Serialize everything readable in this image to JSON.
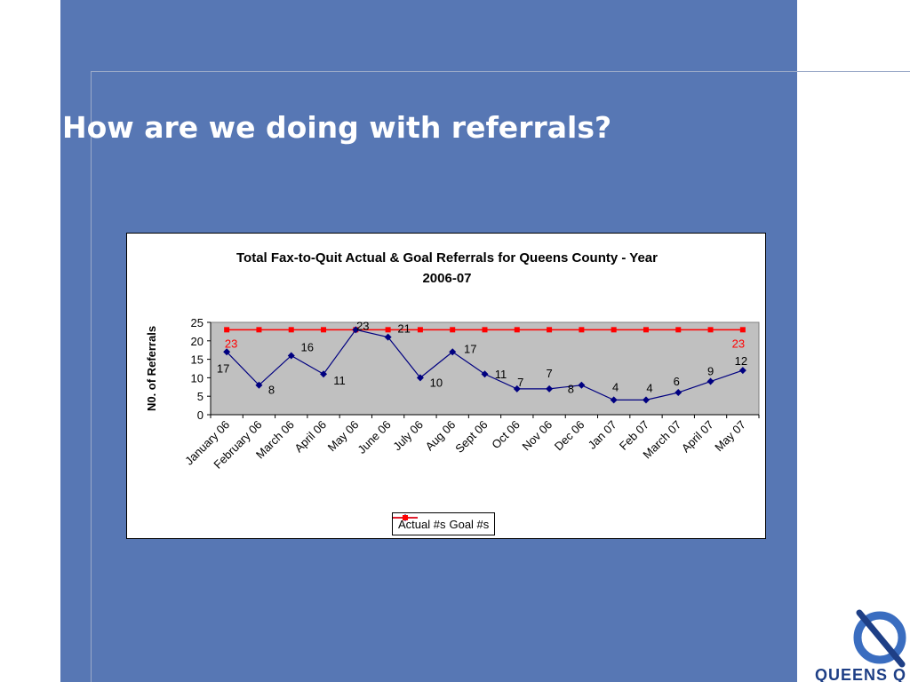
{
  "slide": {
    "title": "How are we doing with referrals?"
  },
  "colors": {
    "panel": "#5777b4",
    "actual": "#000080",
    "goal": "#ff0000",
    "plot_area": "#c0c0c0"
  },
  "logo": {
    "text": "QUEENS Q",
    "icon": "circle-slash-logo-icon"
  },
  "chart_data": {
    "type": "line",
    "title_lines": [
      "Total Fax-to-Quit Actual & Goal Referrals for Queens County -  Year",
      "2006-07"
    ],
    "xlabel": "",
    "ylabel": "N0. of Referrals",
    "ylim": [
      0,
      25
    ],
    "yticks": [
      0,
      5,
      10,
      15,
      20,
      25
    ],
    "grid": false,
    "legend_position": "bottom",
    "categories": [
      "January 06",
      "February 06",
      "March 06",
      "April 06",
      "May 06",
      "June 06",
      "July 06",
      "Aug 06",
      "Sept 06",
      "Oct 06",
      "Nov 06",
      "Dec 06",
      "Jan 07",
      "Feb 07",
      "March 07",
      "April 07",
      "May 07"
    ],
    "series": [
      {
        "name": "Actual #s",
        "color": "#000080",
        "marker": "diamond",
        "values": [
          17,
          8,
          16,
          11,
          23,
          21,
          10,
          17,
          11,
          7,
          7,
          8,
          4,
          4,
          6,
          9,
          12
        ],
        "labels": [
          "17",
          "8",
          "16",
          "11",
          "23",
          "21",
          "10",
          "17",
          "11",
          "7",
          "7",
          "8",
          "4",
          "4",
          "6",
          "9",
          "12"
        ]
      },
      {
        "name": "Goal #s",
        "color": "#ff0000",
        "marker": "square",
        "values": [
          23,
          23,
          23,
          23,
          23,
          23,
          23,
          23,
          23,
          23,
          23,
          23,
          23,
          23,
          23,
          23,
          23
        ],
        "labels": [
          "23",
          "",
          "",
          "",
          "",
          "",
          "",
          "",
          "",
          "",
          "",
          "",
          "",
          "",
          "",
          "",
          "23"
        ]
      }
    ]
  }
}
